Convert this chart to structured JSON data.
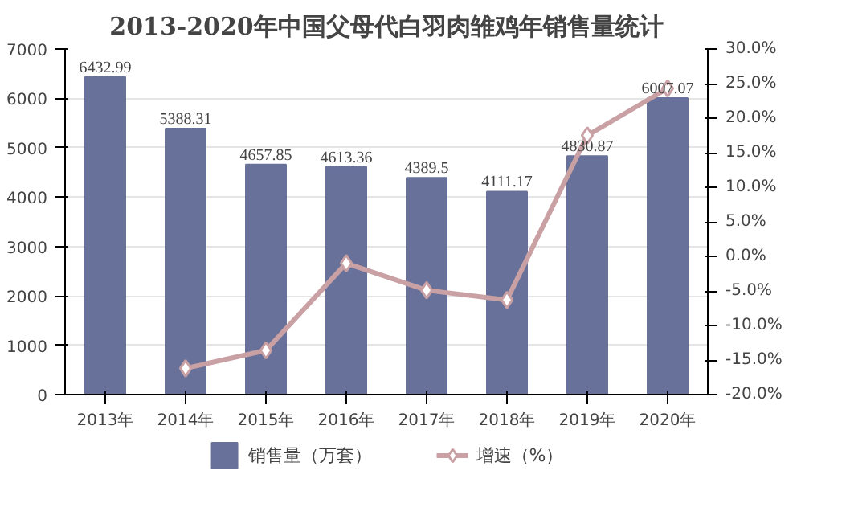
{
  "chart_data": {
    "type": "bar",
    "title": "2013-2020年中国父母代白羽肉雏鸡年销售量统计",
    "categories": [
      "2013年",
      "2014年",
      "2015年",
      "2016年",
      "2017年",
      "2018年",
      "2019年",
      "2020年"
    ],
    "series": [
      {
        "name": "销售量（万套）",
        "color": "#67719a",
        "values": [
          6432.99,
          5388.31,
          4657.85,
          4613.36,
          4389.5,
          4111.17,
          4830.87,
          6007.07
        ],
        "data_labels": true
      },
      {
        "name": "增速（%）",
        "type": "line",
        "axis": "y2",
        "color": "#c9a0a3",
        "marker": "diamond",
        "values": [
          null,
          -16.2,
          -13.6,
          -1.0,
          -4.9,
          -6.3,
          17.5,
          24.3
        ]
      }
    ],
    "ylim": [
      0,
      7000
    ],
    "yticks": [
      0,
      1000,
      2000,
      3000,
      4000,
      5000,
      6000,
      7000
    ],
    "y2lim": [
      -20,
      30
    ],
    "y2ticks": [
      {
        "value": -20,
        "label": "-20.0%"
      },
      {
        "value": -15,
        "label": "-15.0%"
      },
      {
        "value": -10,
        "label": "-10.0%"
      },
      {
        "value": -5,
        "label": "-5.0%"
      },
      {
        "value": 0,
        "label": "0.0%"
      },
      {
        "value": 5,
        "label": "5.0%"
      },
      {
        "value": 10,
        "label": "10.0%"
      },
      {
        "value": 15,
        "label": "15.0%"
      },
      {
        "value": 20,
        "label": "20.0%"
      },
      {
        "value": 25,
        "label": "25.0%"
      },
      {
        "value": 30,
        "label": "30.0%"
      }
    ],
    "grid": "y",
    "legend": "bottom"
  }
}
